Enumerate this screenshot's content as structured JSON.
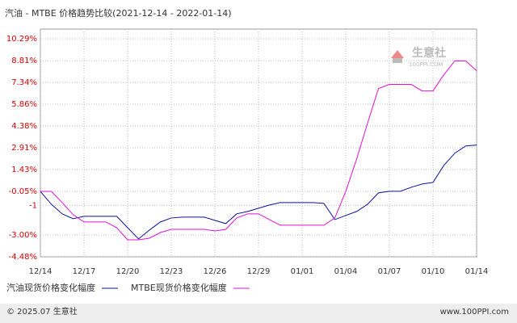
{
  "chart_data": {
    "type": "line",
    "title": "汽油 - MTBE 价格趋势比较(2021-12-14 - 2022-01-14)",
    "categories": [
      "12/14",
      null,
      null,
      null,
      "12/17",
      null,
      null,
      null,
      "12/20",
      null,
      null,
      null,
      "12/23",
      null,
      null,
      null,
      "12/26",
      null,
      null,
      null,
      "12/29",
      null,
      null,
      null,
      "01/01",
      null,
      null,
      null,
      "01/04",
      null,
      null,
      null,
      "01/07",
      null,
      null,
      null,
      "01/10",
      null,
      null,
      null,
      "01/14"
    ],
    "series": [
      {
        "name": "汽油现货价格变化幅度",
        "color": "#1010a0",
        "values": [
          -0.05,
          -0.92,
          -1.57,
          -1.9,
          -1.74,
          -1.74,
          -1.74,
          -1.74,
          -2.51,
          -3.27,
          -2.67,
          -2.12,
          -1.85,
          -1.79,
          -1.79,
          -1.79,
          -2.01,
          -2.23,
          -1.57,
          -1.41,
          -1.19,
          -0.97,
          -0.81,
          -0.81,
          -0.81,
          -0.81,
          -0.86,
          -1.96,
          -1.68,
          -1.41,
          -0.92,
          -0.15,
          -0.04,
          -0.04,
          0.23,
          0.45,
          0.56,
          1.72,
          2.54,
          3.03,
          3.09
        ]
      },
      {
        "name": "MTBE现货价格变化幅度",
        "color": "#e010d0",
        "values": [
          -0.05,
          -0.05,
          -0.81,
          -1.63,
          -2.12,
          -2.12,
          -2.12,
          -2.51,
          -3.33,
          -3.33,
          -3.22,
          -2.84,
          -2.62,
          -2.62,
          -2.62,
          -2.62,
          -2.73,
          -2.62,
          -1.85,
          -1.57,
          -1.57,
          -1.96,
          -2.34,
          -2.34,
          -2.34,
          -2.34,
          -2.34,
          -1.85,
          -0.05,
          2.15,
          4.57,
          6.92,
          7.2,
          7.2,
          7.2,
          6.76,
          6.76,
          7.86,
          8.79,
          8.79,
          8.13
        ]
      }
    ],
    "ylim": [
      -4.48,
      10.95
    ],
    "yticks": [
      {
        "value": 10.29,
        "label": "10.29%"
      },
      {
        "value": 8.81,
        "label": "8.81%"
      },
      {
        "value": 7.34,
        "label": "7.34%"
      },
      {
        "value": 5.86,
        "label": "5.86%"
      },
      {
        "value": 4.38,
        "label": "4.38%"
      },
      {
        "value": 2.91,
        "label": "2.91%"
      },
      {
        "value": 1.43,
        "label": "1.43%"
      },
      {
        "value": -0.05,
        "label": "-0.05%"
      },
      -1,
      {
        "value": -3.0,
        "label": "-3.00%"
      },
      {
        "value": -4.48,
        "label": "-4.48%"
      }
    ],
    "grid": true
  },
  "watermark": {
    "name": "生意社",
    "site": "100PPI.COM"
  },
  "footer": {
    "left": "© 2025.07 生意社",
    "right": "www.100PPI.com"
  }
}
